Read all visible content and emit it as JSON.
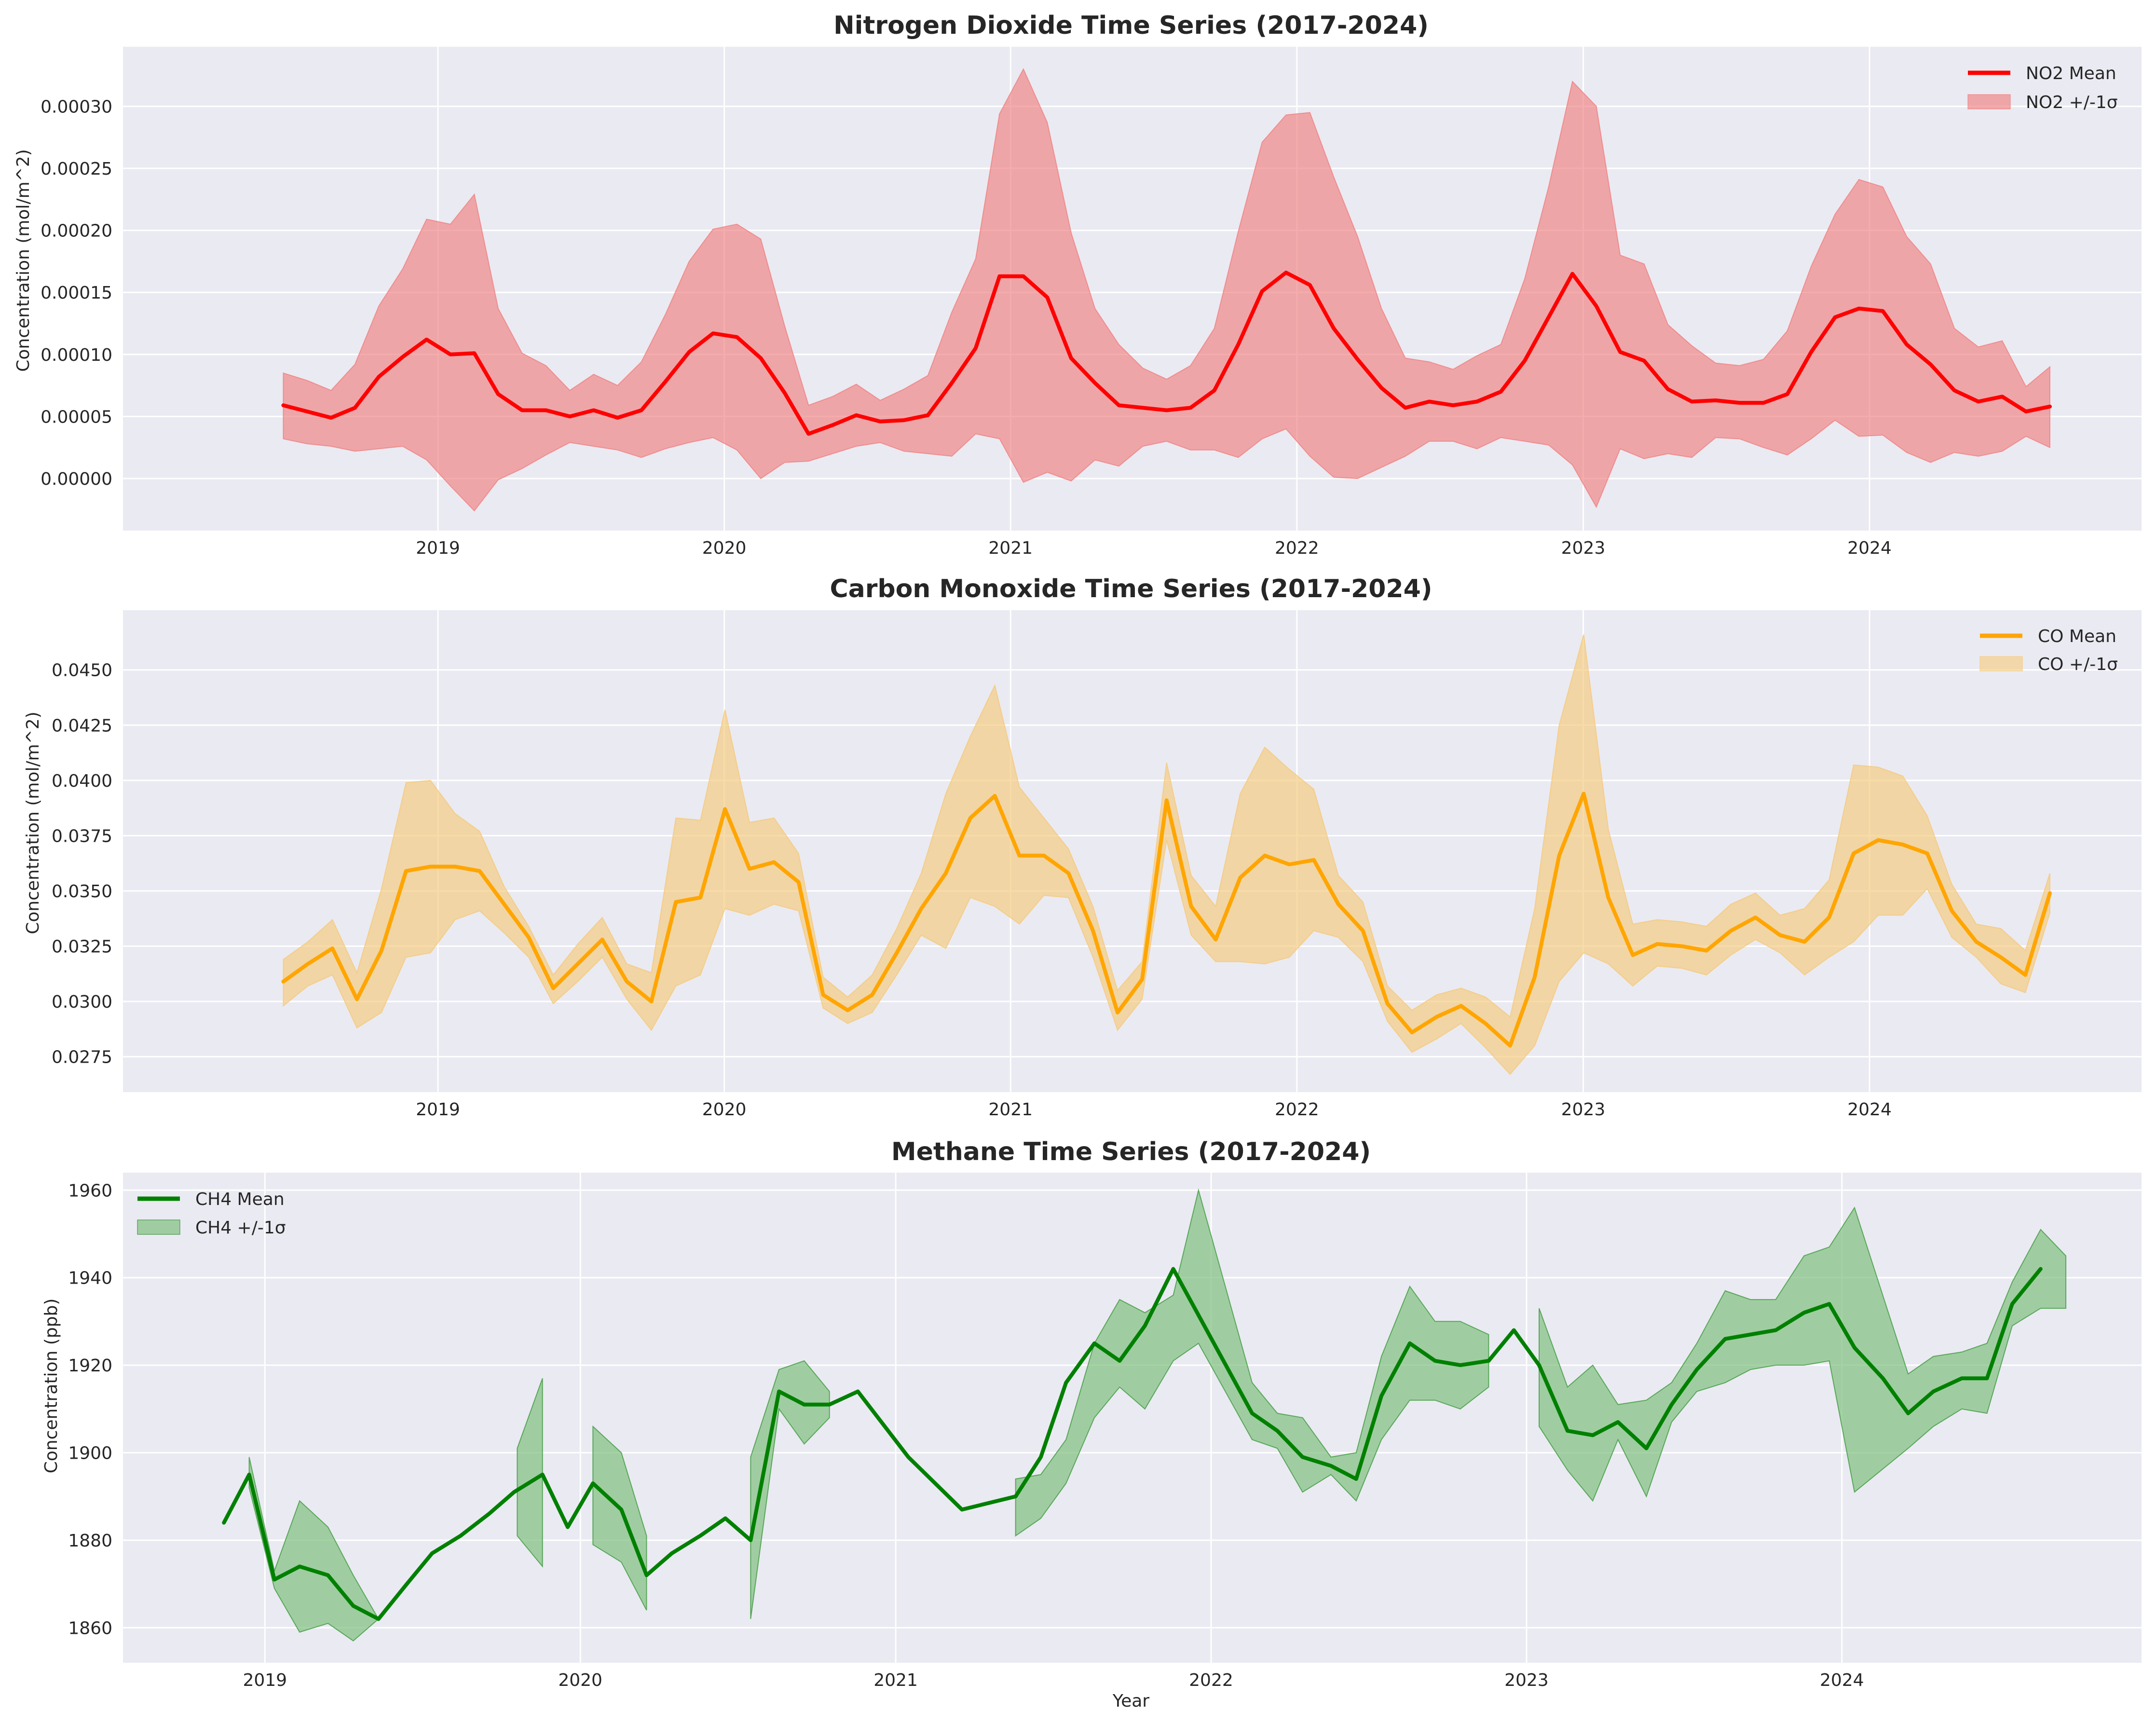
{
  "figure": {
    "xlabel": "Year"
  },
  "chart_data": [
    {
      "type": "line",
      "title": "Nitrogen Dioxide Time Series (2017-2024)",
      "ylabel": "Concentration (mol/m^2)",
      "xlim": [
        2017.9,
        2024.95
      ],
      "ylim": [
        -4.2e-05,
        0.000348
      ],
      "xticks": [
        2019,
        2020,
        2021,
        2022,
        2023,
        2024
      ],
      "yticks": [
        0.0,
        5e-05,
        0.0001,
        0.00015,
        0.0002,
        0.00025,
        0.0003
      ],
      "ytick_labels": [
        "0.00000",
        "0.00005",
        "0.00010",
        "0.00015",
        "0.00020",
        "0.00025",
        "0.00030"
      ],
      "legend_position": "top-right",
      "colors": {
        "line": "#ff0000",
        "band": "#f08080"
      },
      "series": [
        {
          "name": "NO2 Mean",
          "role": "mean",
          "values": [
            5.9e-05,
            5.4e-05,
            4.9e-05,
            5.7e-05,
            8.2e-05,
            9.8e-05,
            0.000112,
            0.0001,
            0.000101,
            6.8e-05,
            5.5e-05,
            5.5e-05,
            5e-05,
            5.5e-05,
            4.9e-05,
            5.5e-05,
            7.8e-05,
            0.000102,
            0.000117,
            0.000114,
            9.7e-05,
            6.9e-05,
            3.6e-05,
            4.3e-05,
            5.1e-05,
            4.6e-05,
            4.7e-05,
            5.1e-05,
            7.7e-05,
            0.000105,
            0.000163,
            0.000163,
            0.000146,
            9.7e-05,
            7.7e-05,
            5.9e-05,
            5.7e-05,
            5.5e-05,
            5.7e-05,
            7.1e-05,
            0.000108,
            0.000151,
            0.000166,
            0.000156,
            0.000121,
            9.6e-05,
            7.3e-05,
            5.7e-05,
            6.2e-05,
            5.9e-05,
            6.2e-05,
            7e-05,
            9.5e-05,
            0.00013,
            0.000165,
            0.000139,
            0.000102,
            9.5e-05,
            7.2e-05,
            6.2e-05,
            6.3e-05,
            6.1e-05,
            6.1e-05,
            6.8e-05,
            0.000102,
            0.00013,
            0.000137,
            0.000135,
            0.000108,
            9.2e-05,
            7.1e-05,
            6.2e-05,
            6.6e-05,
            5.4e-05,
            5.8e-05
          ]
        },
        {
          "name": "NO2 +/-1σ",
          "role": "band",
          "upper": [
            8.5e-05,
            7.9e-05,
            7.1e-05,
            9.2e-05,
            0.000139,
            0.000169,
            0.000209,
            0.000205,
            0.000229,
            0.000137,
            0.000101,
            9.1e-05,
            7.1e-05,
            8.4e-05,
            7.5e-05,
            9.4e-05,
            0.000132,
            0.000175,
            0.000201,
            0.000205,
            0.000193,
            0.000123,
            5.9e-05,
            6.6e-05,
            7.6e-05,
            6.3e-05,
            7.2e-05,
            8.3e-05,
            0.000134,
            0.000177,
            0.000294,
            0.00033,
            0.000287,
            0.000198,
            0.000137,
            0.000108,
            8.9e-05,
            8e-05,
            9.1e-05,
            0.000121,
            0.000199,
            0.000271,
            0.000293,
            0.000295,
            0.000243,
            0.000195,
            0.000137,
            9.7e-05,
            9.4e-05,
            8.8e-05,
            9.9e-05,
            0.000108,
            0.000161,
            0.000235,
            0.00032,
            0.0003,
            0.00018,
            0.000173,
            0.000124,
            0.000107,
            9.3e-05,
            9.1e-05,
            9.6e-05,
            0.000119,
            0.000171,
            0.000213,
            0.000241,
            0.000235,
            0.000195,
            0.000173,
            0.000121,
            0.000106,
            0.000111,
            7.4e-05,
            9e-05
          ],
          "lower": [
            3.2e-05,
            2.8e-05,
            2.6e-05,
            2.2e-05,
            2.4e-05,
            2.6e-05,
            1.5e-05,
            -6e-06,
            -2.6e-05,
            -1e-06,
            8e-06,
            1.9e-05,
            2.9e-05,
            2.6e-05,
            2.3e-05,
            1.7e-05,
            2.4e-05,
            2.9e-05,
            3.3e-05,
            2.3e-05,
            0.0,
            1.3e-05,
            1.4e-05,
            2e-05,
            2.6e-05,
            2.9e-05,
            2.2e-05,
            2e-05,
            1.8e-05,
            3.6e-05,
            3.2e-05,
            -3e-06,
            5e-06,
            -2e-06,
            1.5e-05,
            1e-05,
            2.6e-05,
            3e-05,
            2.3e-05,
            2.3e-05,
            1.7e-05,
            3.2e-05,
            4e-05,
            1.8e-05,
            1e-06,
            0.0,
            9e-06,
            1.8e-05,
            3e-05,
            3e-05,
            2.4e-05,
            3.3e-05,
            3e-05,
            2.7e-05,
            1.1e-05,
            -2.3e-05,
            2.4e-05,
            1.6e-05,
            2e-05,
            1.7e-05,
            3.3e-05,
            3.2e-05,
            2.5e-05,
            1.9e-05,
            3.2e-05,
            4.7e-05,
            3.4e-05,
            3.5e-05,
            2.1e-05,
            1.3e-05,
            2.1e-05,
            1.8e-05,
            2.2e-05,
            3.4e-05,
            2.5e-05
          ]
        }
      ]
    },
    {
      "type": "line",
      "title": "Carbon Monoxide Time Series (2017-2024)",
      "ylabel": "Concentration (mol/m^2)",
      "xlim": [
        2017.9,
        2024.95
      ],
      "ylim": [
        0.0259,
        0.0477
      ],
      "xticks": [
        2019,
        2020,
        2021,
        2022,
        2023,
        2024
      ],
      "yticks": [
        0.0275,
        0.03,
        0.0325,
        0.035,
        0.0375,
        0.04,
        0.0425,
        0.045
      ],
      "ytick_labels": [
        "0.0275",
        "0.0300",
        "0.0325",
        "0.0350",
        "0.0375",
        "0.0400",
        "0.0425",
        "0.0450"
      ],
      "legend_position": "top-right",
      "colors": {
        "line": "#ffa500",
        "band": "#f5c97a"
      },
      "series": [
        {
          "name": "CO Mean",
          "role": "mean",
          "values": [
            0.0309,
            0.0317,
            0.0324,
            0.0301,
            0.0323,
            0.0359,
            0.0361,
            0.0361,
            0.0359,
            0.0344,
            0.0329,
            0.0306,
            0.0317,
            0.0328,
            0.0309,
            0.03,
            0.0345,
            0.0347,
            0.0387,
            0.036,
            0.0363,
            0.0354,
            0.0303,
            0.0296,
            0.0303,
            0.0322,
            0.0342,
            0.0358,
            0.0383,
            0.0393,
            0.0366,
            0.0366,
            0.0358,
            0.0332,
            0.0295,
            0.031,
            0.0391,
            0.0343,
            0.0328,
            0.0356,
            0.0366,
            0.0362,
            0.0364,
            0.0344,
            0.0332,
            0.0299,
            0.0286,
            0.0293,
            0.0298,
            0.029,
            0.028,
            0.0311,
            0.0366,
            0.0394,
            0.0347,
            0.0321,
            0.0326,
            0.0325,
            0.0323,
            0.0332,
            0.0338,
            0.033,
            0.0327,
            0.0338,
            0.0367,
            0.0373,
            0.0371,
            0.0367,
            0.0341,
            0.0327,
            0.032,
            0.0312,
            0.0349
          ]
        },
        {
          "name": "CO +/-1σ",
          "role": "band",
          "upper": [
            0.0319,
            0.0327,
            0.0337,
            0.0313,
            0.0351,
            0.0399,
            0.04,
            0.0385,
            0.0377,
            0.0352,
            0.0334,
            0.0312,
            0.0326,
            0.0338,
            0.0317,
            0.0313,
            0.0383,
            0.0382,
            0.0432,
            0.0381,
            0.0383,
            0.0367,
            0.0311,
            0.0302,
            0.0312,
            0.0333,
            0.0358,
            0.0394,
            0.042,
            0.0443,
            0.0397,
            0.0383,
            0.0369,
            0.0343,
            0.0305,
            0.0318,
            0.0408,
            0.0357,
            0.0343,
            0.0394,
            0.0415,
            0.0405,
            0.0396,
            0.0357,
            0.0345,
            0.0307,
            0.0296,
            0.0303,
            0.0306,
            0.0302,
            0.0293,
            0.0342,
            0.0425,
            0.0466,
            0.0378,
            0.0335,
            0.0337,
            0.0336,
            0.0334,
            0.0344,
            0.0349,
            0.0339,
            0.0342,
            0.0355,
            0.0407,
            0.0406,
            0.0402,
            0.0384,
            0.0353,
            0.0335,
            0.0333,
            0.0323,
            0.0358
          ],
          "lower": [
            0.0298,
            0.0307,
            0.0312,
            0.0288,
            0.0295,
            0.032,
            0.0322,
            0.0337,
            0.0341,
            0.0331,
            0.032,
            0.0299,
            0.0309,
            0.032,
            0.0301,
            0.0287,
            0.0307,
            0.0312,
            0.0342,
            0.0339,
            0.0344,
            0.0341,
            0.0297,
            0.029,
            0.0295,
            0.0312,
            0.033,
            0.0324,
            0.0347,
            0.0343,
            0.0335,
            0.0348,
            0.0347,
            0.032,
            0.0287,
            0.0301,
            0.0373,
            0.033,
            0.0318,
            0.0318,
            0.0317,
            0.032,
            0.0332,
            0.0329,
            0.0318,
            0.0291,
            0.0277,
            0.0283,
            0.029,
            0.0279,
            0.0267,
            0.028,
            0.0309,
            0.0322,
            0.0317,
            0.0307,
            0.0316,
            0.0315,
            0.0312,
            0.0321,
            0.0328,
            0.0322,
            0.0312,
            0.032,
            0.0327,
            0.0339,
            0.0339,
            0.0351,
            0.0329,
            0.032,
            0.0308,
            0.0304,
            0.034
          ]
        }
      ]
    },
    {
      "type": "line",
      "title": "Methane Time Series (2017-2024)",
      "ylabel": "Concentration (ppb)",
      "xlim": [
        2018.55,
        2024.95
      ],
      "ylim": [
        1852,
        1964
      ],
      "xticks": [
        2019,
        2020,
        2021,
        2022,
        2023,
        2024
      ],
      "yticks": [
        1860,
        1880,
        1900,
        1920,
        1940,
        1960
      ],
      "ytick_labels": [
        "1860",
        "1880",
        "1900",
        "1920",
        "1940",
        "1960"
      ],
      "legend_position": "top-left",
      "colors": {
        "line": "#008000",
        "band": "#7fc07f"
      },
      "series": [
        {
          "name": "CH4 Mean",
          "role": "mean",
          "values": [
            1884,
            1895,
            1871,
            1874,
            1872,
            1865,
            1862,
            1870,
            1877,
            1881,
            1886,
            1891,
            1895,
            1883,
            1893,
            1887,
            1872,
            1877,
            1881,
            1885,
            1880,
            1914,
            1911,
            1911,
            1914,
            1899,
            1887,
            1890,
            1899,
            1916,
            1925,
            1921,
            1929,
            1942,
            1909,
            1905,
            1899,
            1897,
            1894,
            1913,
            1925,
            1921,
            1920,
            1921,
            1928,
            1920,
            1905,
            1904,
            1907,
            1901,
            1911,
            1919,
            1926,
            1927,
            1928,
            1932,
            1934,
            1924,
            1917,
            1909,
            1914,
            1917,
            1917,
            1934,
            1942
          ]
        },
        {
          "name": "CH4 +/-1σ",
          "role": "band",
          "segments": [
            {
              "x": [
                2018.95,
                2019.03,
                2019.11,
                2019.2,
                2019.28,
                2019.36
              ],
              "upper": [
                1899,
                1873,
                1889,
                1883,
                1872,
                1862
              ],
              "lower": [
                1892,
                1869,
                1859,
                1861,
                1857,
                1862
              ]
            },
            {
              "x": [
                2019.8,
                2019.88
              ],
              "upper": [
                1901,
                1917
              ],
              "lower": [
                1881,
                1874
              ]
            },
            {
              "x": [
                2020.04,
                2020.13,
                2020.21
              ],
              "upper": [
                1906,
                1900,
                1881
              ],
              "lower": [
                1879,
                1875,
                1864
              ]
            },
            {
              "x": [
                2020.54,
                2020.63,
                2020.71,
                2020.79
              ],
              "upper": [
                1899,
                1919,
                1921,
                1914
              ],
              "lower": [
                1862,
                1910,
                1902,
                1908
              ]
            },
            {
              "x": [
                2021.38,
                2021.46,
                2021.54,
                2021.63,
                2021.71,
                2021.79,
                2021.88,
                2021.96,
                2022.13,
                2022.21,
                2022.29,
                2022.38,
                2022.46,
                2022.54,
                2022.63,
                2022.71,
                2022.79,
                2022.88
              ],
              "upper": [
                1894,
                1895,
                1903,
                1925,
                1935,
                1932,
                1936,
                1960,
                1916,
                1909,
                1908,
                1899,
                1900,
                1922,
                1938,
                1930,
                1930,
                1927
              ],
              "lower": [
                1881,
                1885,
                1893,
                1908,
                1915,
                1910,
                1921,
                1925,
                1903,
                1901,
                1891,
                1895,
                1889,
                1903,
                1912,
                1912,
                1910,
                1915
              ]
            },
            {
              "x": [
                2023.04,
                2023.13,
                2023.21,
                2023.29,
                2023.38,
                2023.46,
                2023.54,
                2023.63,
                2023.71,
                2023.79,
                2023.88,
                2023.96,
                2024.04,
                2024.21,
                2024.29,
                2024.38,
                2024.46,
                2024.54,
                2024.63,
                2024.71
              ],
              "upper": [
                1933,
                1915,
                1920,
                1911,
                1912,
                1916,
                1925,
                1937,
                1935,
                1935,
                1945,
                1947,
                1956,
                1918,
                1922,
                1923,
                1925,
                1939,
                1951,
                1945
              ],
              "lower": [
                1906,
                1896,
                1889,
                1903,
                1890,
                1907,
                1914,
                1916,
                1919,
                1920,
                1920,
                1921,
                1891,
                1901,
                1906,
                1910,
                1909,
                1929,
                1933,
                1933
              ]
            }
          ]
        }
      ]
    }
  ]
}
